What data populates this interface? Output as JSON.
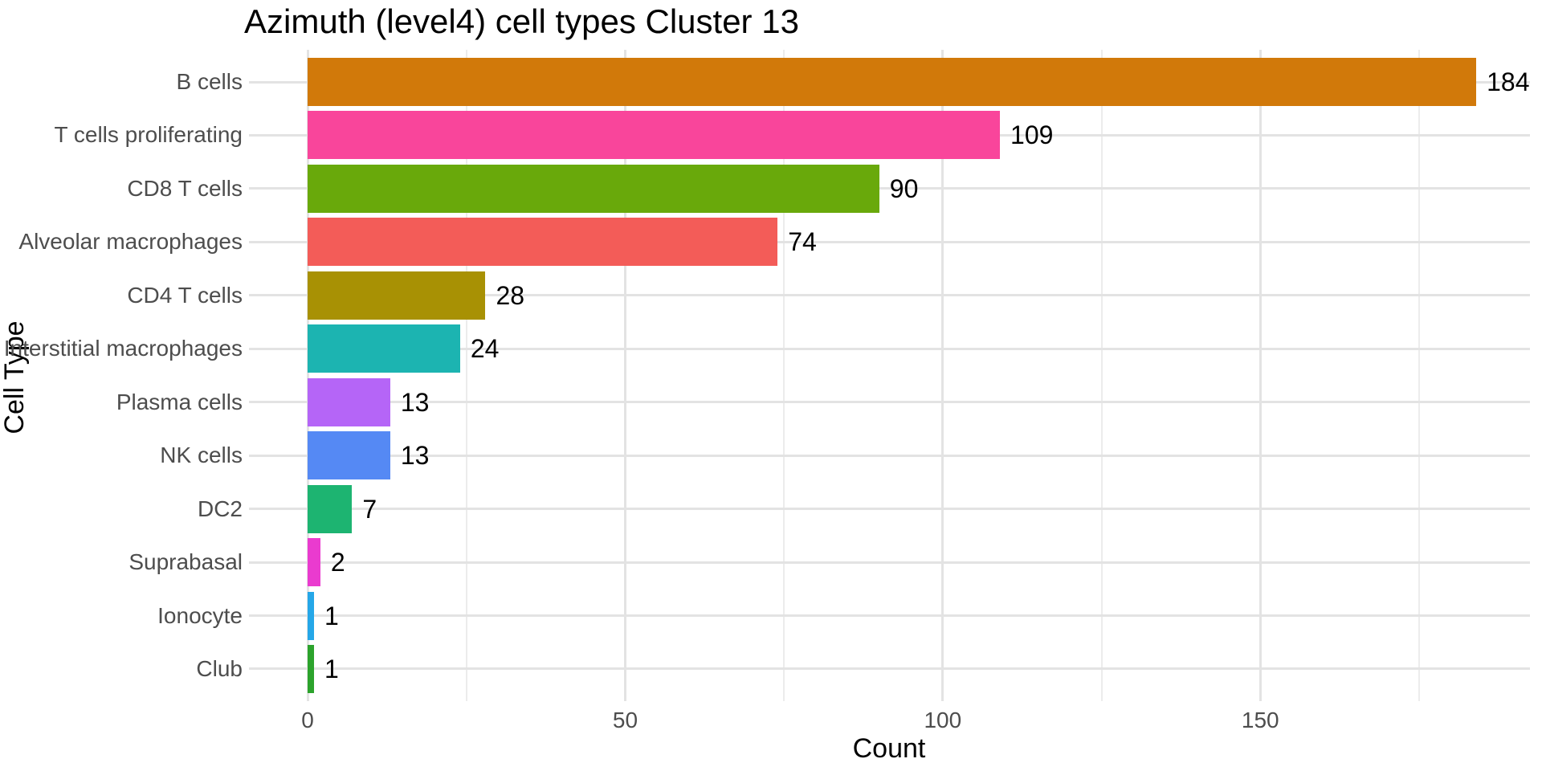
{
  "chart_data": {
    "type": "bar",
    "orientation": "horizontal",
    "title": "Azimuth (level4) cell types Cluster 13",
    "xlabel": "Count",
    "ylabel": "Cell Type",
    "categories": [
      "B cells",
      "T cells proliferating",
      "CD8 T cells",
      "Alveolar macrophages",
      "CD4 T cells",
      "Interstitial macrophages",
      "Plasma cells",
      "NK cells",
      "DC2",
      "Suprabasal",
      "Ionocyte",
      "Club"
    ],
    "values": [
      184,
      109,
      90,
      74,
      28,
      24,
      13,
      13,
      7,
      2,
      1,
      1
    ],
    "bar_colors": [
      "#D1790A",
      "#F9459B",
      "#69A90B",
      "#F35C58",
      "#A89104",
      "#1CB4B1",
      "#B565F7",
      "#5589F4",
      "#1DB471",
      "#EA3BCF",
      "#25A7E8",
      "#2CA32C"
    ],
    "x_ticks": [
      0,
      50,
      100,
      150
    ],
    "x_tick_labels": [
      "0",
      "50",
      "100",
      "150"
    ],
    "x_minor_ticks": [
      25,
      75,
      125,
      175
    ],
    "x_domain": [
      -9.24,
      192.46
    ],
    "grid": "vertical major+minor, horizontal major per category, no axis lines",
    "legend": "none",
    "background_color": "#FFFFFF",
    "axis_text_color": "#4D4D4D",
    "label_text_color": "#000000",
    "grid_major_color": "#E3E3E3",
    "grid_minor_color": "#ECECEC"
  }
}
